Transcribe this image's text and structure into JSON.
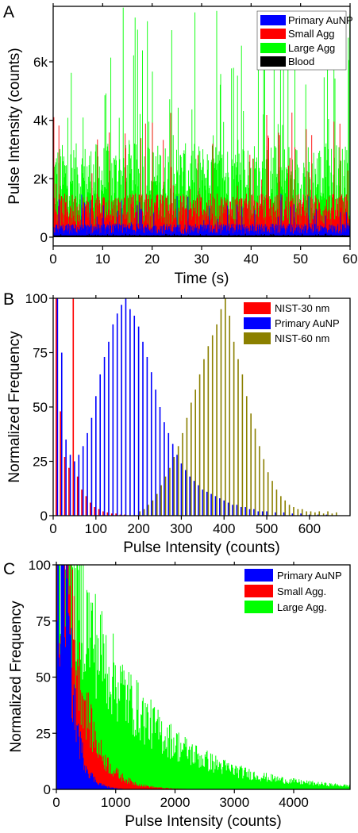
{
  "chart_data": [
    {
      "panel_label": "A",
      "type": "bar",
      "xlabel": "Time (s)",
      "ylabel": "Pulse Intensity (counts)",
      "xlim": [
        0,
        60
      ],
      "ylim": [
        -300,
        7900
      ],
      "xticks": [
        0,
        10,
        20,
        30,
        40,
        50,
        60
      ],
      "xtick_labels": [
        "0",
        "10",
        "20",
        "30",
        "40",
        "50",
        "60"
      ],
      "yticks": [
        0,
        2000,
        4000,
        6000
      ],
      "ytick_labels": [
        "0",
        "2k",
        "4k",
        "6k"
      ],
      "legend_position": "top-right",
      "series": [
        {
          "name": "Primary AuNP",
          "color": "#0000ff",
          "typical": 400,
          "max": 1500
        },
        {
          "name": "Small Agg",
          "color": "#ff0000",
          "typical": 1300,
          "max": 4300
        },
        {
          "name": "Large Agg",
          "color": "#00ff00",
          "typical": 2800,
          "max": 7900
        },
        {
          "name": "Blood",
          "color": "#000000",
          "typical": 60,
          "max": 120
        }
      ]
    },
    {
      "panel_label": "B",
      "type": "bar",
      "xlabel": "Pulse Intensity (counts)",
      "ylabel": "Normalized Frequency",
      "xlim": [
        0,
        695
      ],
      "ylim": [
        0,
        100
      ],
      "xticks": [
        0,
        100,
        200,
        300,
        400,
        500,
        600
      ],
      "xtick_labels": [
        "0",
        "100",
        "200",
        "300",
        "400",
        "500",
        "600"
      ],
      "yticks": [
        0,
        25,
        50,
        75,
        100
      ],
      "ytick_labels": [
        "0",
        "25",
        "50",
        "75",
        "100"
      ],
      "legend_position": "top-right",
      "bin_width": 10,
      "series": [
        {
          "name": "NIST-30 nm",
          "color": "#ff0000",
          "x": [
            10,
            20,
            30,
            40,
            50,
            60,
            70,
            80,
            90,
            100,
            110,
            120,
            130,
            140,
            150,
            160,
            170
          ],
          "values": [
            100,
            48,
            27,
            22,
            100,
            18,
            12,
            9,
            6,
            4,
            3,
            2,
            1.5,
            1,
            1,
            0.5,
            0.5
          ]
        },
        {
          "name": "Primary AuNP",
          "color": "#0000ff",
          "x": [
            10,
            20,
            30,
            40,
            50,
            60,
            70,
            80,
            90,
            100,
            110,
            120,
            130,
            140,
            150,
            160,
            170,
            180,
            190,
            200,
            210,
            220,
            230,
            240,
            250,
            260,
            270,
            280,
            290,
            300,
            310,
            320,
            330,
            340,
            350,
            360,
            370,
            380,
            390,
            400,
            410,
            420,
            430,
            440,
            450,
            460,
            470,
            480,
            490,
            500,
            520,
            540,
            560,
            580,
            600,
            620,
            640
          ],
          "values": [
            100,
            75,
            35,
            28,
            25,
            28,
            32,
            38,
            45,
            55,
            65,
            73,
            80,
            88,
            93,
            97,
            100,
            95,
            92,
            87,
            80,
            73,
            66,
            58,
            50,
            43,
            38,
            33,
            28,
            24,
            21,
            18,
            16,
            14,
            12,
            11,
            10,
            9,
            8,
            7,
            6,
            5,
            5,
            4,
            4,
            3,
            3,
            2,
            2,
            2,
            1.5,
            1.5,
            1,
            1,
            0.5,
            0.5,
            0.5
          ]
        },
        {
          "name": "NIST-60 nm",
          "color": "#8b8000",
          "x": [
            200,
            210,
            220,
            230,
            240,
            250,
            260,
            270,
            280,
            290,
            300,
            310,
            320,
            330,
            340,
            350,
            360,
            370,
            380,
            390,
            400,
            410,
            420,
            430,
            440,
            450,
            460,
            470,
            480,
            490,
            500,
            510,
            520,
            530,
            540,
            550,
            560,
            570,
            580,
            590,
            600,
            610,
            620,
            630,
            640,
            650,
            660
          ],
          "values": [
            2,
            3,
            5,
            7,
            10,
            14,
            18,
            22,
            27,
            32,
            38,
            45,
            52,
            58,
            65,
            72,
            78,
            83,
            88,
            95,
            100,
            92,
            80,
            72,
            65,
            55,
            47,
            40,
            32,
            26,
            20,
            16,
            12,
            9,
            7,
            5,
            4,
            3,
            3,
            2,
            2,
            1.5,
            2,
            1,
            2,
            1,
            1.5
          ]
        }
      ]
    },
    {
      "panel_label": "C",
      "type": "bar",
      "xlabel": "Pulse Intensity (counts)",
      "ylabel": "Normalized Frequency",
      "xlim": [
        0,
        4950
      ],
      "ylim": [
        0,
        100
      ],
      "xticks": [
        0,
        1000,
        2000,
        3000,
        4000
      ],
      "xtick_labels": [
        "0",
        "1000",
        "2000",
        "3000",
        "4000"
      ],
      "yticks": [
        0,
        25,
        50,
        75,
        100
      ],
      "ytick_labels": [
        "0",
        "25",
        "50",
        "75",
        "100"
      ],
      "legend_position": "top-right",
      "series": [
        {
          "name": "Primary AuNP",
          "color": "#0000ff",
          "peak_x": 150,
          "decay_counts": 160
        },
        {
          "name": "Small Agg.",
          "color": "#ff0000",
          "peak_x": 180,
          "decay_counts": 320
        },
        {
          "name": "Large Agg.",
          "color": "#00ff00",
          "peak_x": 200,
          "decay_counts": 1150
        }
      ]
    }
  ]
}
